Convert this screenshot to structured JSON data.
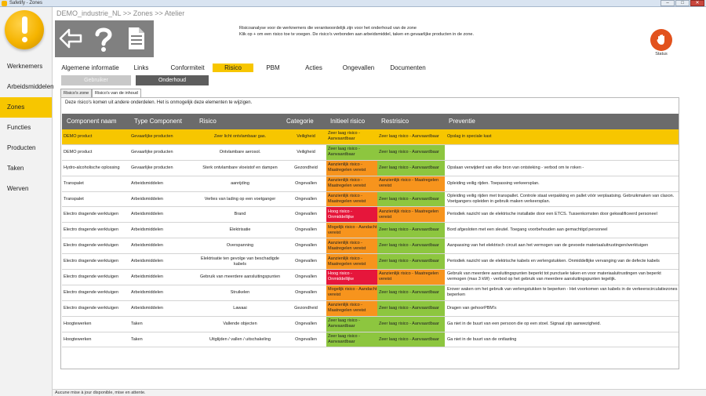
{
  "window": {
    "title": "Safetify - Zones",
    "controls": [
      "–",
      "□",
      "✕"
    ]
  },
  "sidebar": {
    "items": [
      {
        "label": "Werknemers",
        "active": false
      },
      {
        "label": "Arbeidsmiddelen",
        "active": false
      },
      {
        "label": "Zones",
        "active": true
      },
      {
        "label": "Functies",
        "active": false
      },
      {
        "label": "Producten",
        "active": false
      },
      {
        "label": "Taken",
        "active": false
      },
      {
        "label": "Werven",
        "active": false
      }
    ]
  },
  "header": {
    "breadcrumb": "DEMO_industrie_NL >> Zones >> Atelier",
    "toolbar_icons": [
      "back-arrow-icon",
      "help-icon",
      "document-icon"
    ],
    "description_line1": "Risicoanalyse voor de werknemers die verantwoordelijk zijn voor het onderhoud van de zone",
    "description_line2": "Klik op + om een risico toe te voegen.   De risico's verbonden aan arbeidsmiddel, taken en gevaarlijke producten in de zone.",
    "status_label": "Status",
    "status_icon": "stop-hand-icon"
  },
  "tabs": [
    {
      "label": "Algemene informatie",
      "active": false
    },
    {
      "label": "Links",
      "active": false
    },
    {
      "label": "Conformiteit",
      "active": false
    },
    {
      "label": "Risico",
      "active": true
    },
    {
      "label": "PBM",
      "active": false
    },
    {
      "label": "Acties",
      "active": false
    },
    {
      "label": "Ongevallen",
      "active": false
    },
    {
      "label": "Documenten",
      "active": false
    }
  ],
  "subbuttons": {
    "gebruiker": "Gebruiker",
    "onderhoud": "Onderhoud"
  },
  "subtabs": {
    "zone": "Risico's zone",
    "inherited": "Risico's van de inhoud"
  },
  "panel_note": "Deze risico's komen uit andere onderdelen. Het is onmogelijk deze elementen te wijzigen.",
  "colors": {
    "accent": "#f7c600",
    "green": "#8dc63f",
    "orange": "#f7941d",
    "red": "#e6163b",
    "header": "#6b6b6b"
  },
  "grid": {
    "columns": [
      "Component naam",
      "Type Component",
      "Risico",
      "Categorie",
      "Initieel risico",
      "Restrisico",
      "Preventie"
    ],
    "rows": [
      {
        "selected": true,
        "name": "DEMO product",
        "type": "Gevaarlijke producten",
        "risk": "Zeer licht ontvlambaar gas.",
        "category": "Veiligheid",
        "initial": "Zeer laag risico - Aanvaardbaar",
        "initial_level": "yellow",
        "residual": "Zeer laag risico - Aanvaardbaar",
        "residual_level": "yellow",
        "prevention": "Opslag in speciale kast"
      },
      {
        "selected": false,
        "name": "DEMO product",
        "type": "Gevaarlijke producten",
        "risk": "Ontvlambare aerosol.",
        "category": "Veiligheid",
        "initial": "Zeer laag risico - Aanvaardbaar",
        "initial_level": "green",
        "residual": "Zeer laag risico - Aanvaardbaar",
        "residual_level": "green",
        "prevention": ""
      },
      {
        "selected": false,
        "name": "Hydro-alcoholische oplossing",
        "type": "Gevaarlijke producten",
        "risk": "Sterk ontvlambare vloeistof en dampen",
        "category": "Gezondheid",
        "initial": "Aanzienlijk risico - Maatregelen vereist",
        "initial_level": "orange",
        "residual": "Zeer laag risico - Aanvaardbaar",
        "residual_level": "green",
        "prevention": "Opslaan verwijderd van elke bron van ontsteking - verbod om te roken -"
      },
      {
        "selected": false,
        "name": "Transpalet",
        "type": "Arbeidsmiddelen",
        "risk": "aanrijding",
        "category": "Ongevallen",
        "initial": "Aanzienlijk risico - Maatregelen vereist",
        "initial_level": "orange",
        "residual": "Aanzienlijk risico - Maatregelen vereist",
        "residual_level": "orange",
        "prevention": "Opleiding veilig rijden. Toepassing verkeersplan."
      },
      {
        "selected": false,
        "name": "Transpalet",
        "type": "Arbeidsmiddelen",
        "risk": "Verlies van lading op een voetganger",
        "category": "Ongevallen",
        "initial": "Aanzienlijk risico - Maatregelen vereist",
        "initial_level": "orange",
        "residual": "Zeer laag risico - Aanvaardbaar",
        "residual_level": "green",
        "prevention": "Opleiding veilig rijden met transpallet. Controle staat verpakking en pallet vóór verplaatsing. Gebruikmaken van claxon. Voetgangers opleiden in gebruik maken verkeersplan."
      },
      {
        "selected": false,
        "name": "Electro dragende werktuigen",
        "type": "Arbeidsmiddelen",
        "risk": "Brand",
        "category": "Ongevallen",
        "initial": "Hoog risico - Onmiddellijke",
        "initial_level": "red",
        "residual": "Aanzienlijk risico - Maatregelen vereist",
        "residual_level": "orange",
        "prevention": "Periodiek nazicht van de elektrische installatie door een ETCS. Tussenkomsten door gekwalificeerd personeel"
      },
      {
        "selected": false,
        "name": "Electro dragende werktuigen",
        "type": "Arbeidsmiddelen",
        "risk": "Elektrisatie",
        "category": "Ongevallen",
        "initial": "Mogelijk risico - Aandacht vereist",
        "initial_level": "orange",
        "residual": "Zeer laag risico - Aanvaardbaar",
        "residual_level": "green",
        "prevention": "Bord afgesloten met een sleutel. Toegang voorbehouden aan gemachtigd personeel"
      },
      {
        "selected": false,
        "name": "Electro dragende werktuigen",
        "type": "Arbeidsmiddelen",
        "risk": "Overspanning",
        "category": "Ongevallen",
        "initial": "Aanzienlijk risico - Maatregelen vereist",
        "initial_level": "orange",
        "residual": "Zeer laag risico - Aanvaardbaar",
        "residual_level": "green",
        "prevention": "Aanpassing van het elektrisch circuit aan het vermogen van de gevoede materiaaluitrustingen/werktuigen"
      },
      {
        "selected": false,
        "name": "Electro dragende werktuigen",
        "type": "Arbeidsmiddelen",
        "risk": "Elektrisatie ten gevolge van beschadigde kabels",
        "category": "Ongevallen",
        "initial": "Aanzienlijk risico - Maatregelen vereist",
        "initial_level": "orange",
        "residual": "Zeer laag risico - Aanvaardbaar",
        "residual_level": "green",
        "prevention": "Periodiek nazicht van de elektrische kabels en verlengstukken. Onmiddellijke vervanging van de defecte kabels"
      },
      {
        "selected": false,
        "name": "Electro dragende werktuigen",
        "type": "Arbeidsmiddelen",
        "risk": "Gebruik van meerdere aansluitingspunten",
        "category": "Ongevallen",
        "initial": "Hoog risico - Onmiddellijke",
        "initial_level": "red",
        "residual": "Aanzienlijk risico - Maatregelen vereist",
        "residual_level": "orange",
        "prevention": "Gebruik van meerdere aansluitingspunten beperkt tot punctuele taken en voor materiaaluitrustingen van beperkt vermogen (max 3 kW) - verbod op het gebruik van meerdere aansluitingspunten tegelijk."
      },
      {
        "selected": false,
        "name": "Electro dragende werktuigen",
        "type": "Arbeidsmiddelen",
        "risk": "Struikelen",
        "category": "Ongevallen",
        "initial": "Mogelijk risico - Aandacht vereist",
        "initial_level": "orange",
        "residual": "Zeer laag risico - Aanvaardbaar",
        "residual_level": "green",
        "prevention": "Erover waken om het gebruik van verlengstukken te beperken - Het voorkomen van kabels in de verkeerscirculatiezones beperken"
      },
      {
        "selected": false,
        "name": "Electro dragende werktuigen",
        "type": "Arbeidsmiddelen",
        "risk": "Lawaai",
        "category": "Gezondheid",
        "initial": "Aanzienlijk risico - Maatregelen vereist",
        "initial_level": "orange",
        "residual": "Zeer laag risico - Aanvaardbaar",
        "residual_level": "green",
        "prevention": "Dragen van gehoorPBM's"
      },
      {
        "selected": false,
        "name": "Hoogtewerken",
        "type": "Taken",
        "risk": "Vallende objecten",
        "category": "Ongevallen",
        "initial": "Zeer laag risico - Aanvaardbaar",
        "initial_level": "green",
        "residual": "Zeer laag risico - Aanvaardbaar",
        "residual_level": "green",
        "prevention": "Ga niet in de buurt van een persoon die op een stoel. Signaal zijn aanwezigheid."
      },
      {
        "selected": false,
        "name": "Hoogtewerken",
        "type": "Taken",
        "risk": "Uitglijden / vallen / uitschakeling",
        "category": "Ongevallen",
        "initial": "Zeer laag risico - Aanvaardbaar",
        "initial_level": "green",
        "residual": "Zeer laag risico - Aanvaardbaar",
        "residual_level": "green",
        "prevention": "Ga niet in de buurt van de ontlasting"
      }
    ]
  },
  "statusbar": {
    "text": "Aucune mise à jour disponible, mise en attente."
  }
}
